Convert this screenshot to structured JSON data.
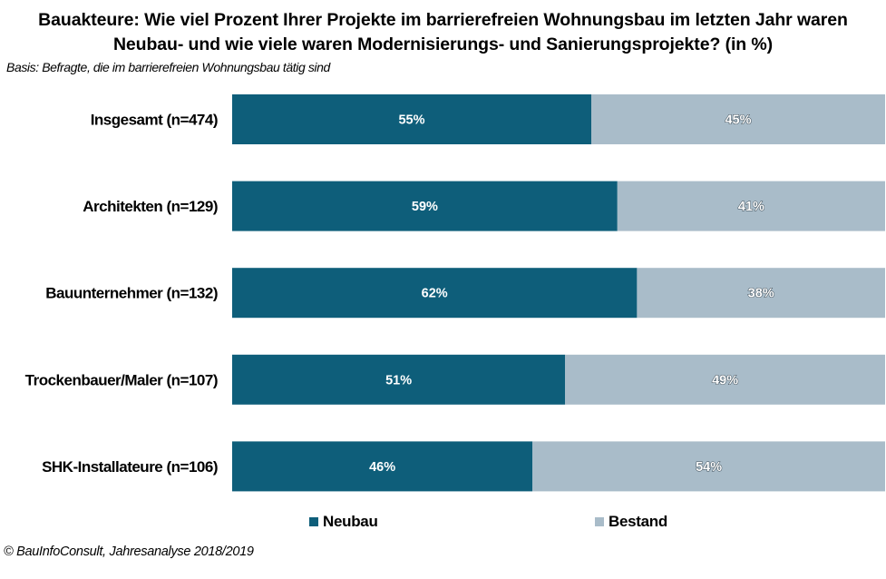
{
  "header": {
    "title_line1": "Bauakteure:  Wie viel Prozent Ihrer Projekte im barrierefreien Wohnungsbau  im letzten Jahr waren",
    "title_line2": "Neubau- und wie viele waren Modernisierungs- und Sanierungsprojekte?  (in %)",
    "basis": "Basis: Befragte, die im barrierefreien Wohnungsbau tätig sind"
  },
  "footer": {
    "source": "© BauInfoConsult,  Jahresanalyse 2018/2019"
  },
  "colors": {
    "neubau": "#0e5e7a",
    "bestand": "#a9bcc9"
  },
  "chart_data": {
    "type": "bar",
    "orientation": "horizontal",
    "stacked": true,
    "categories": [
      "Insgesamt (n=474)",
      "Architekten (n=129)",
      "Bauunternehmer (n=132)",
      "Trockenbauer/Maler (n=107)",
      "SHK-Installateure (n=106)"
    ],
    "series": [
      {
        "name": "Neubau",
        "values": [
          55,
          59,
          62,
          51,
          46
        ],
        "labels": [
          "55%",
          "59%",
          "62%",
          "51%",
          "46%"
        ]
      },
      {
        "name": "Bestand",
        "values": [
          45,
          41,
          38,
          49,
          54
        ],
        "labels": [
          "45%",
          "41%",
          "38%",
          "49%",
          "54%"
        ]
      }
    ],
    "xlim": [
      0,
      100
    ],
    "grid": false,
    "legend_position": "bottom"
  }
}
